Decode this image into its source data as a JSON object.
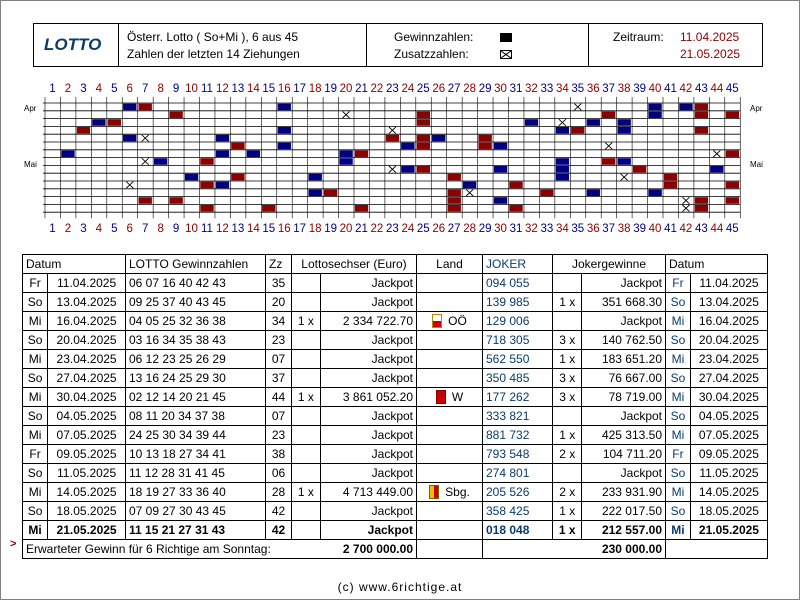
{
  "header": {
    "logo": "LOTTO",
    "desc_line1": "Österr. Lotto ( So+Mi ),  6 aus 45",
    "desc_line2": "Zahlen der letzten 14 Ziehungen",
    "legend_main": "Gewinnzahlen:",
    "legend_extra": "Zusatzzahlen:",
    "range_label": "Zeitraum:",
    "range_from": "11.04.2025",
    "range_to": "21.05.2025"
  },
  "grid": {
    "numbers": [
      "1",
      "2",
      "3",
      "4",
      "5",
      "6",
      "7",
      "8",
      "9",
      "10",
      "11",
      "12",
      "13",
      "14",
      "15",
      "16",
      "17",
      "18",
      "19",
      "20",
      "21",
      "22",
      "23",
      "24",
      "25",
      "26",
      "27",
      "28",
      "29",
      "30",
      "31",
      "32",
      "33",
      "34",
      "35",
      "36",
      "37",
      "38",
      "39",
      "40",
      "41",
      "42",
      "43",
      "44",
      "45"
    ],
    "month_apr": "Apr",
    "month_mai": "Mai",
    "draws": [
      {
        "main": [
          6,
          7,
          16,
          40,
          42,
          43
        ],
        "extra": 35
      },
      {
        "main": [
          9,
          25,
          37,
          40,
          43,
          45
        ],
        "extra": 20
      },
      {
        "main": [
          4,
          5,
          25,
          32,
          36,
          38
        ],
        "extra": 34
      },
      {
        "main": [
          3,
          16,
          34,
          35,
          38,
          43
        ],
        "extra": 23
      },
      {
        "main": [
          6,
          12,
          23,
          25,
          26,
          29
        ],
        "extra": 7
      },
      {
        "main": [
          13,
          16,
          24,
          25,
          29,
          30
        ],
        "extra": 37
      },
      {
        "main": [
          2,
          12,
          14,
          20,
          21,
          45
        ],
        "extra": 44
      },
      {
        "main": [
          8,
          11,
          20,
          34,
          37,
          38
        ],
        "extra": 7
      },
      {
        "main": [
          24,
          25,
          30,
          34,
          39,
          44
        ],
        "extra": 23
      },
      {
        "main": [
          10,
          13,
          18,
          27,
          34,
          41
        ],
        "extra": 38
      },
      {
        "main": [
          11,
          12,
          28,
          31,
          41,
          45
        ],
        "extra": 6
      },
      {
        "main": [
          18,
          19,
          27,
          33,
          36,
          40
        ],
        "extra": 28
      },
      {
        "main": [
          7,
          9,
          27,
          30,
          43,
          45
        ],
        "extra": 42
      },
      {
        "main": [
          11,
          15,
          21,
          27,
          31,
          43
        ],
        "extra": 42
      }
    ]
  },
  "table": {
    "headers": {
      "datum": "Datum",
      "lotto": "LOTTO Gewinnzahlen",
      "zz": "Zz",
      "sechser": "Lottosechser (Euro)",
      "land": "Land",
      "joker": "JOKER",
      "jokergewinne": "Jokergewinne",
      "datum2": "Datum"
    },
    "rows": [
      {
        "day": "Fr",
        "date": "11.04.2025",
        "nums": "06 07 16 40 42 43",
        "zz": "35",
        "six_count": "",
        "six": "Jackpot",
        "land": "",
        "joker": "094 055",
        "jk_count": "",
        "jk": "Jackpot"
      },
      {
        "day": "So",
        "date": "13.04.2025",
        "nums": "09 25 37 40 43 45",
        "zz": "20",
        "six_count": "",
        "six": "Jackpot",
        "land": "",
        "joker": "139 985",
        "jk_count": "1 x",
        "jk": "351 668.30"
      },
      {
        "day": "Mi",
        "date": "16.04.2025",
        "nums": "04 05 25 32 36 38",
        "zz": "34",
        "six_count": "1 x",
        "six": "2 334 722.70",
        "land": "OÖ",
        "joker": "129 006",
        "jk_count": "",
        "jk": "Jackpot"
      },
      {
        "day": "So",
        "date": "20.04.2025",
        "nums": "03 16 34 35 38 43",
        "zz": "23",
        "six_count": "",
        "six": "Jackpot",
        "land": "",
        "joker": "718 305",
        "jk_count": "3 x",
        "jk": "140 762.50"
      },
      {
        "day": "Mi",
        "date": "23.04.2025",
        "nums": "06 12 23 25 26 29",
        "zz": "07",
        "six_count": "",
        "six": "Jackpot",
        "land": "",
        "joker": "562 550",
        "jk_count": "1 x",
        "jk": "183 651.20"
      },
      {
        "day": "So",
        "date": "27.04.2025",
        "nums": "13 16 24 25 29 30",
        "zz": "37",
        "six_count": "",
        "six": "Jackpot",
        "land": "",
        "joker": "350 485",
        "jk_count": "3 x",
        "jk": "76 667.00"
      },
      {
        "day": "Mi",
        "date": "30.04.2025",
        "nums": "02 12 14 20 21 45",
        "zz": "44",
        "six_count": "1 x",
        "six": "3 861 052.20",
        "land": "W",
        "joker": "177 262",
        "jk_count": "3 x",
        "jk": "78 719.00"
      },
      {
        "day": "So",
        "date": "04.05.2025",
        "nums": "08 11 20 34 37 38",
        "zz": "07",
        "six_count": "",
        "six": "Jackpot",
        "land": "",
        "joker": "333 821",
        "jk_count": "",
        "jk": "Jackpot"
      },
      {
        "day": "Mi",
        "date": "07.05.2025",
        "nums": "24 25 30 34 39 44",
        "zz": "23",
        "six_count": "",
        "six": "Jackpot",
        "land": "",
        "joker": "881 732",
        "jk_count": "1 x",
        "jk": "425 313.50"
      },
      {
        "day": "Fr",
        "date": "09.05.2025",
        "nums": "10 13 18 27 34 41",
        "zz": "38",
        "six_count": "",
        "six": "Jackpot",
        "land": "",
        "joker": "793 548",
        "jk_count": "2 x",
        "jk": "104 711.20"
      },
      {
        "day": "So",
        "date": "11.05.2025",
        "nums": "11 12 28 31 41 45",
        "zz": "06",
        "six_count": "",
        "six": "Jackpot",
        "land": "",
        "joker": "274 801",
        "jk_count": "",
        "jk": "Jackpot"
      },
      {
        "day": "Mi",
        "date": "14.05.2025",
        "nums": "18 19 27 33 36 40",
        "zz": "28",
        "six_count": "1 x",
        "six": "4 713 449.00",
        "land": "Sbg.",
        "joker": "205 526",
        "jk_count": "2 x",
        "jk": "233 931.90"
      },
      {
        "day": "So",
        "date": "18.05.2025",
        "nums": "07 09 27 30 43 45",
        "zz": "42",
        "six_count": "",
        "six": "Jackpot",
        "land": "",
        "joker": "358 425",
        "jk_count": "1 x",
        "jk": "222 017.50"
      },
      {
        "day": "Mi",
        "date": "21.05.2025",
        "nums": "11 15 21 27 31 43",
        "zz": "42",
        "six_count": "",
        "six": "Jackpot",
        "land": "",
        "joker": "018 048",
        "jk_count": "1 x",
        "jk": "212 557.00"
      }
    ],
    "arrow": ">",
    "expected_label": "Erwarteter Gewinn für 6 Richtige am Sonntag:",
    "expected_six": "2 700 000.00",
    "expected_joker": "230 000.00"
  },
  "footer": "(c) www.6richtige.at",
  "colors": {
    "main_even": "#000080",
    "main_odd": "#8b0000",
    "extra": "#000000",
    "date_red": "#8b0000",
    "logo": "#0a3b6b"
  }
}
